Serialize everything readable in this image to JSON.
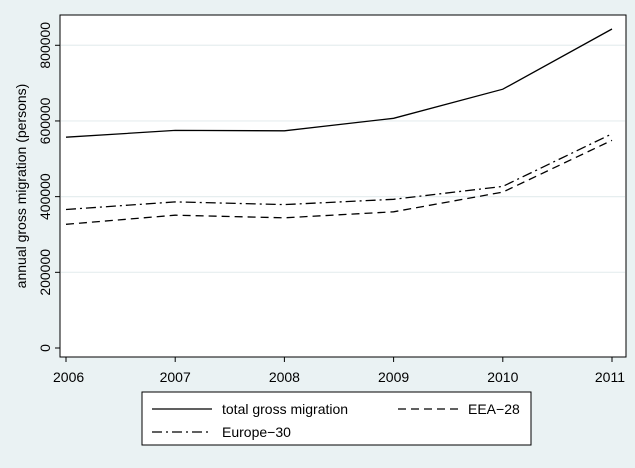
{
  "chart_data": {
    "type": "line",
    "title": "",
    "xlabel": "",
    "ylabel": "annual gross migration (persons)",
    "x": [
      2006,
      2007,
      2008,
      2009,
      2010,
      2011
    ],
    "xticks": [
      "2006",
      "2007",
      "2008",
      "2009",
      "2010",
      "2011"
    ],
    "yticks": [
      "0",
      "200000",
      "400000",
      "600000",
      "800000"
    ],
    "ylim": [
      0,
      880000
    ],
    "grid": "horizontal",
    "legend_position": "bottom",
    "series": [
      {
        "name": "total gross migration",
        "dash": "solid",
        "values": [
          557000,
          575000,
          574000,
          607000,
          684000,
          843000
        ]
      },
      {
        "name": "EEA−28",
        "dash": "dashed",
        "values": [
          327000,
          351000,
          344000,
          360000,
          412000,
          549000
        ]
      },
      {
        "name": "Europe−30",
        "dash": "dashdot",
        "values": [
          366000,
          386000,
          379000,
          393000,
          427000,
          566000
        ]
      }
    ],
    "colors": {
      "line": "#000000",
      "plot_bg": "#ffffff",
      "outer_bg": "#eaf2f3",
      "grid": "#e6eeef"
    }
  }
}
